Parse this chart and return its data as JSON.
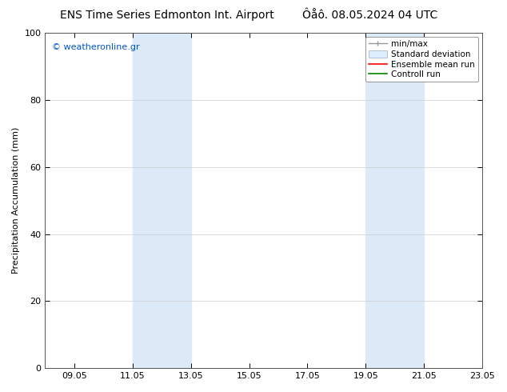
{
  "title_left": "ENS Time Series Edmonton Int. Airport",
  "title_right": "Ôåô. 08.05.2024 04 UTC",
  "ylabel": "Precipitation Accumulation (mm)",
  "watermark": "© weatheronline.gr",
  "watermark_color": "#0055cc",
  "ylim": [
    0,
    100
  ],
  "yticks": [
    0,
    20,
    40,
    60,
    80,
    100
  ],
  "xtick_labels": [
    "09.05",
    "11.05",
    "13.05",
    "15.05",
    "17.05",
    "19.05",
    "21.05",
    "23.05"
  ],
  "xtick_positions": [
    1,
    3,
    5,
    7,
    9,
    11,
    13,
    15
  ],
  "xlim": [
    0,
    15
  ],
  "shade_regions": [
    {
      "x_start": 3,
      "x_end": 5
    },
    {
      "x_start": 11,
      "x_end": 13
    }
  ],
  "shade_color": "#dceaf8",
  "background_color": "#ffffff",
  "plot_bg_color": "#ffffff",
  "legend_labels": [
    "min/max",
    "Standard deviation",
    "Ensemble mean run",
    "Controll run"
  ],
  "legend_colors_line": [
    "#aaaaaa",
    "#ccddee",
    "#ff0000",
    "#008800"
  ],
  "title_fontsize": 10,
  "axis_label_fontsize": 8,
  "tick_fontsize": 8,
  "watermark_fontsize": 8
}
